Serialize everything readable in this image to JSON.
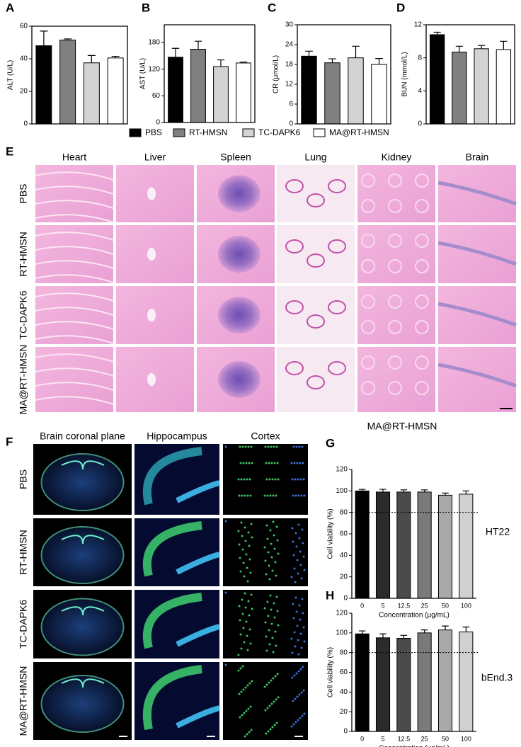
{
  "chart_data": [
    {
      "type": "bar",
      "panel": "A",
      "ylabel": "ALT (U/L)",
      "values": [
        48,
        51.5,
        37.5,
        40.5
      ],
      "errors": [
        9,
        0.7,
        4.5,
        1
      ],
      "colors": [
        "#000000",
        "#808080",
        "#d3d3d3",
        "#ffffff"
      ],
      "ylim": [
        0,
        60
      ],
      "yticks": [
        0,
        20,
        40,
        60
      ]
    },
    {
      "type": "bar",
      "panel": "B",
      "ylabel": "AST (U/L)",
      "values": [
        147,
        165,
        126,
        134
      ],
      "errors": [
        20,
        18,
        15,
        2
      ],
      "colors": [
        "#000000",
        "#808080",
        "#d3d3d3",
        "#ffffff"
      ],
      "ylim": [
        0,
        220
      ],
      "yticks": [
        0,
        60,
        120,
        180
      ]
    },
    {
      "type": "bar",
      "panel": "C",
      "ylabel": "CR (μmol/L)",
      "values": [
        20.5,
        18.5,
        20,
        18
      ],
      "errors": [
        1.5,
        1.2,
        3.5,
        1.8
      ],
      "colors": [
        "#000000",
        "#808080",
        "#d3d3d3",
        "#ffffff"
      ],
      "ylim": [
        0,
        30
      ],
      "yticks": [
        0,
        6,
        12,
        18,
        24,
        30
      ]
    },
    {
      "type": "bar",
      "panel": "D",
      "ylabel": "BUN (mmol/L)",
      "values": [
        10.8,
        8.7,
        9.1,
        9
      ],
      "errors": [
        0.3,
        0.7,
        0.4,
        1
      ],
      "colors": [
        "#000000",
        "#808080",
        "#d3d3d3",
        "#ffffff"
      ],
      "ylim": [
        0,
        12
      ],
      "yticks": [
        0,
        4,
        8,
        12
      ]
    },
    {
      "type": "bar",
      "panel": "G",
      "title": "MA@RT-HMSN",
      "annotation": "HT22",
      "ylabel": "Cell viability (%)",
      "xlabel": "Concentration (μg/mL)",
      "categories": [
        "0",
        "5",
        "12.5",
        "25",
        "50",
        "100"
      ],
      "values": [
        100,
        99,
        99,
        99,
        96,
        97
      ],
      "errors": [
        1.5,
        2.5,
        2,
        2,
        2,
        3
      ],
      "colors": [
        "#000000",
        "#2b2b2b",
        "#4a4a4a",
        "#7a7a7a",
        "#a9a9a9",
        "#d0d0d0"
      ],
      "ylim": [
        0,
        120
      ],
      "yticks": [
        0,
        20,
        40,
        60,
        80,
        100,
        120
      ],
      "ref_line": 80
    },
    {
      "type": "bar",
      "panel": "H",
      "annotation": "bEnd.3",
      "ylabel": "Cell viability (%)",
      "xlabel": "Concentration (μg/mL)",
      "categories": [
        "0",
        "5",
        "12.5",
        "25",
        "50",
        "100"
      ],
      "values": [
        99,
        95,
        94.5,
        100,
        103,
        101
      ],
      "errors": [
        3,
        4,
        3,
        3,
        4,
        5
      ],
      "colors": [
        "#000000",
        "#2b2b2b",
        "#4a4a4a",
        "#7a7a7a",
        "#a9a9a9",
        "#d0d0d0"
      ],
      "ylim": [
        0,
        120
      ],
      "yticks": [
        0,
        20,
        40,
        60,
        80,
        100,
        120
      ],
      "ref_line": 80
    }
  ],
  "legend": {
    "items": [
      {
        "name": "PBS",
        "color": "#000000"
      },
      {
        "name": "RT-HMSN",
        "color": "#808080"
      },
      {
        "name": "TC-DAPK6",
        "color": "#d3d3d3"
      },
      {
        "name": "MA@RT-HMSN",
        "color": "#ffffff"
      }
    ]
  },
  "histology": {
    "panel": "E",
    "columns": [
      "Heart",
      "Liver",
      "Spleen",
      "Lung",
      "Kidney",
      "Brain"
    ],
    "rows": [
      "PBS",
      "RT-HMSN",
      "TC-DAPK6",
      "MA@RT-HMSN"
    ]
  },
  "fluorescence": {
    "panel": "F",
    "columns": [
      "Brain coronal plane",
      "Hippocampus",
      "Cortex"
    ],
    "rows": [
      "PBS",
      "RT-HMSN",
      "TC-DAPK6",
      "MA@RT-HMSN"
    ]
  }
}
